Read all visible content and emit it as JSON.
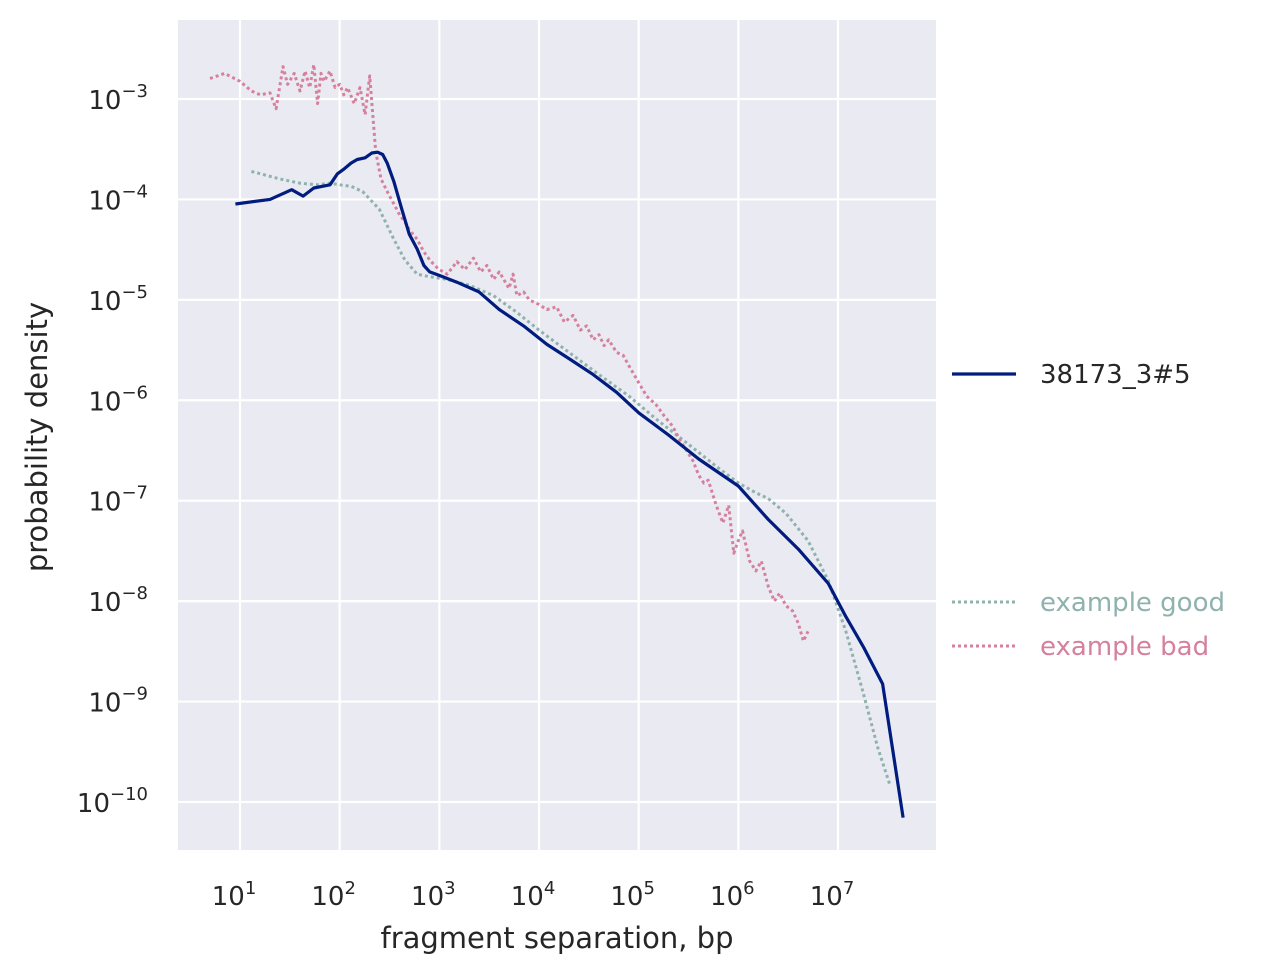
{
  "chart_data": {
    "type": "line",
    "x_scale": "log",
    "y_scale": "log",
    "xlabel": "fragment separation, bp",
    "ylabel": "probability density",
    "xlim": [
      2.2,
      90000000
    ],
    "ylim": [
      3e-11,
      0.006
    ],
    "grid": true,
    "x_ticks": [
      {
        "value": 10,
        "base": "10",
        "exp": "1"
      },
      {
        "value": 100,
        "base": "10",
        "exp": "2"
      },
      {
        "value": 1000,
        "base": "10",
        "exp": "3"
      },
      {
        "value": 10000,
        "base": "10",
        "exp": "4"
      },
      {
        "value": 100000,
        "base": "10",
        "exp": "5"
      },
      {
        "value": 1000000,
        "base": "10",
        "exp": "6"
      },
      {
        "value": 10000000,
        "base": "10",
        "exp": "7"
      }
    ],
    "y_ticks": [
      {
        "value": 0.001,
        "base": "10",
        "exp": "−3"
      },
      {
        "value": 0.0001,
        "base": "10",
        "exp": "−4"
      },
      {
        "value": 1e-05,
        "base": "10",
        "exp": "−5"
      },
      {
        "value": 1e-06,
        "base": "10",
        "exp": "−6"
      },
      {
        "value": 1e-07,
        "base": "10",
        "exp": "−7"
      },
      {
        "value": 1e-08,
        "base": "10",
        "exp": "−8"
      },
      {
        "value": 1e-09,
        "base": "10",
        "exp": "−9"
      },
      {
        "value": 1e-10,
        "base": "10",
        "exp": "−10"
      }
    ],
    "series": [
      {
        "name": "38173_3#5",
        "color": "#001c7f",
        "style": "solid",
        "x": [
          9,
          20,
          33,
          43,
          55,
          80,
          95,
          110,
          130,
          150,
          180,
          210,
          240,
          270,
          300,
          350,
          420,
          500,
          600,
          700,
          800,
          1000,
          1500,
          2500,
          4000,
          7000,
          12000,
          20000,
          35000,
          60000,
          100000,
          200000,
          400000,
          1000000,
          2000000,
          4000000,
          8000000,
          12000000,
          18000000,
          28000000,
          45000000
        ],
        "y": [
          9e-05,
          0.0001,
          0.000125,
          0.000108,
          0.00013,
          0.00014,
          0.00018,
          0.0002,
          0.00023,
          0.00025,
          0.00026,
          0.00029,
          0.000295,
          0.00028,
          0.00023,
          0.00015,
          8e-05,
          4.5e-05,
          3.2e-05,
          2.2e-05,
          1.9e-05,
          1.75e-05,
          1.5e-05,
          1.2e-05,
          8e-06,
          5.5e-06,
          3.6e-06,
          2.6e-06,
          1.8e-06,
          1.2e-06,
          7.5e-07,
          4.5e-07,
          2.6e-07,
          1.4e-07,
          6.5e-08,
          3.3e-08,
          1.5e-08,
          7e-09,
          3.5e-09,
          1.5e-09,
          7e-11
        ]
      },
      {
        "name": "example good",
        "color": "#8fb2ad",
        "style": "dotted",
        "x": [
          13,
          25,
          40,
          60,
          80,
          100,
          130,
          170,
          250,
          350,
          450,
          600,
          800,
          1200,
          2000,
          3500,
          6000,
          10000,
          20000,
          40000,
          80000,
          150000,
          300000,
          600000,
          1000000,
          1500000,
          2000000,
          3000000,
          5000000,
          8000000,
          12000000,
          18000000,
          25000000,
          33000000
        ],
        "y": [
          0.00019,
          0.00016,
          0.000145,
          0.00014,
          0.000145,
          0.00014,
          0.000135,
          0.00012,
          8e-05,
          4e-05,
          2.5e-05,
          1.8e-05,
          1.7e-05,
          1.6e-05,
          1.4e-05,
          1.1e-05,
          7.5e-06,
          5e-06,
          3e-06,
          1.8e-06,
          1.1e-06,
          6.5e-07,
          3.8e-07,
          2.2e-07,
          1.5e-07,
          1.2e-07,
          1.05e-07,
          7.5e-08,
          4e-08,
          1.6e-08,
          5e-09,
          1.2e-09,
          3.5e-10,
          1.5e-10
        ]
      },
      {
        "name": "example bad",
        "color": "#d5819d",
        "style": "dotted",
        "x": [
          5,
          7,
          10,
          13,
          16,
          20,
          23,
          27,
          30,
          35,
          40,
          45,
          50,
          55,
          60,
          65,
          70,
          80,
          90,
          100,
          110,
          120,
          140,
          160,
          180,
          200,
          230,
          260,
          300,
          350,
          400,
          450,
          500,
          600,
          700,
          800,
          900,
          1000,
          1200,
          1500,
          1800,
          2200,
          2600,
          3000,
          3500,
          4000,
          5000,
          5500,
          6000,
          7000,
          8000,
          10000,
          12000,
          15000,
          18000,
          22000,
          26000,
          30000,
          35000,
          40000,
          45000,
          50000,
          60000,
          70000,
          80000,
          100000,
          120000,
          150000,
          180000,
          220000,
          260000,
          300000,
          350000,
          400000,
          450000,
          500000,
          600000,
          700000,
          800000,
          900000,
          1000000,
          1100000,
          1300000,
          1500000,
          1700000,
          2000000,
          2300000,
          2600000,
          3000000,
          3500000,
          4000000,
          4500000,
          5000000
        ],
        "y": [
          0.0016,
          0.0018,
          0.0015,
          0.0012,
          0.0011,
          0.00115,
          0.0008,
          0.0021,
          0.0014,
          0.0018,
          0.0012,
          0.0019,
          0.0013,
          0.0022,
          0.0009,
          0.0018,
          0.0015,
          0.0019,
          0.0013,
          0.0014,
          0.0011,
          0.0013,
          0.0009,
          0.0013,
          0.0007,
          0.0017,
          0.0003,
          0.00016,
          0.00012,
          9e-05,
          7e-05,
          6e-05,
          5e-05,
          4e-05,
          3e-05,
          2.5e-05,
          2.2e-05,
          2e-05,
          1.8e-05,
          2.4e-05,
          2e-05,
          2.6e-05,
          1.9e-05,
          2.2e-05,
          1.6e-05,
          1.9e-05,
          1.3e-05,
          1.8e-05,
          1.1e-05,
          1.2e-05,
          1e-05,
          9e-06,
          8e-06,
          8.5e-06,
          6e-06,
          7e-06,
          5e-06,
          5.5e-06,
          4e-06,
          4.5e-06,
          3.5e-06,
          4e-06,
          3e-06,
          2.8e-06,
          2.2e-06,
          1.5e-06,
          1.1e-06,
          9e-07,
          7e-07,
          5.5e-07,
          4e-07,
          3.2e-07,
          2.5e-07,
          1.8e-07,
          1.5e-07,
          1.6e-07,
          9e-08,
          6e-08,
          9e-08,
          3e-08,
          4e-08,
          5e-08,
          2.5e-08,
          2e-08,
          2.5e-08,
          1.4e-08,
          1e-08,
          1.2e-08,
          9e-09,
          8e-09,
          6e-09,
          4e-09,
          5e-09
        ]
      }
    ],
    "legend": {
      "placement": "right",
      "entries": [
        {
          "label": "38173_3#5",
          "color": "#001c7f",
          "style": "solid",
          "text_color": "#262626"
        },
        {
          "label": "example good",
          "color": "#8fb2ad",
          "style": "dotted",
          "text_color": "#8fb2ad"
        },
        {
          "label": "example bad",
          "color": "#d5819d",
          "style": "dotted",
          "text_color": "#d5819d"
        }
      ]
    },
    "colors": {
      "plot_background": "#eaeaf2",
      "grid": "#ffffff"
    }
  }
}
